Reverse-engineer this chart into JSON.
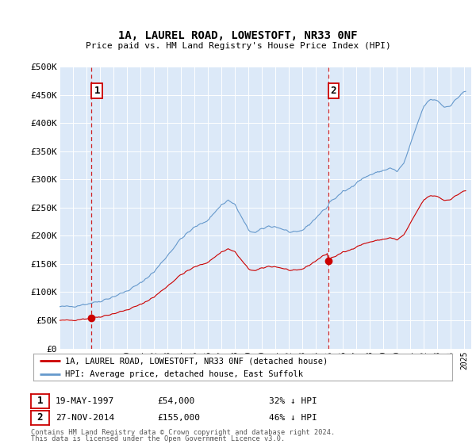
{
  "title": "1A, LAUREL ROAD, LOWESTOFT, NR33 0NF",
  "subtitle": "Price paid vs. HM Land Registry's House Price Index (HPI)",
  "sale1_date": "19-MAY-1997",
  "sale1_price": 54000,
  "sale1_pct": "32% ↓ HPI",
  "sale1_year": 1997.37,
  "sale2_date": "27-NOV-2014",
  "sale2_price": 155000,
  "sale2_pct": "46% ↓ HPI",
  "sale2_year": 2014.9,
  "legend_line1": "1A, LAUREL ROAD, LOWESTOFT, NR33 0NF (detached house)",
  "legend_line2": "HPI: Average price, detached house, East Suffolk",
  "footer1": "Contains HM Land Registry data © Crown copyright and database right 2024.",
  "footer2": "This data is licensed under the Open Government Licence v3.0.",
  "plot_bg": "#dce9f8",
  "red_line_color": "#cc0000",
  "blue_line_color": "#6699cc",
  "dashed_color": "#cc0000",
  "ylim_max": 500000,
  "ylim_min": 0,
  "xlim_min": 1995.0,
  "xlim_max": 2025.5
}
